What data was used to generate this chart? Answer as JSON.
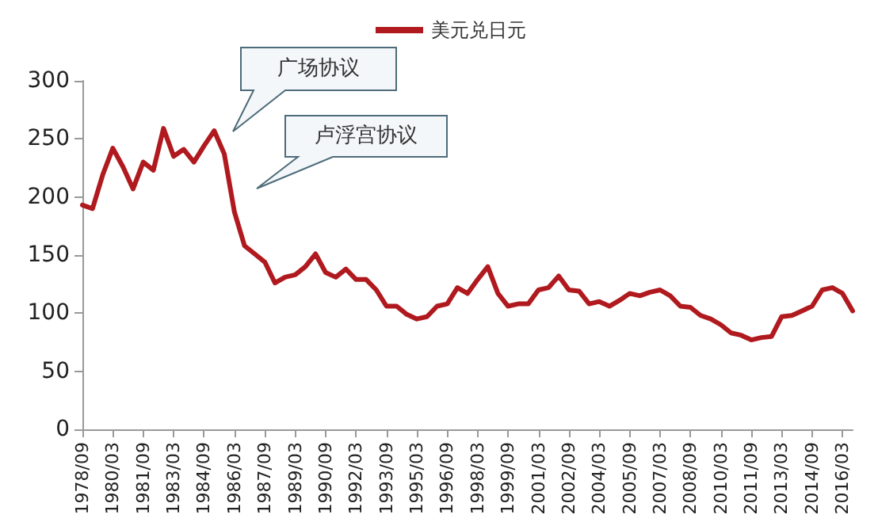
{
  "chart_data": {
    "type": "line",
    "categories": [
      "1978/09",
      null,
      null,
      "1980/03",
      null,
      null,
      "1981/09",
      null,
      null,
      "1983/03",
      null,
      null,
      "1984/09",
      null,
      null,
      "1986/03",
      null,
      null,
      "1987/09",
      null,
      null,
      "1989/03",
      null,
      null,
      "1990/09",
      null,
      null,
      "1992/03",
      null,
      null,
      "1993/09",
      null,
      null,
      "1995/03",
      null,
      null,
      "1996/09",
      null,
      null,
      "1998/03",
      null,
      null,
      "1999/09",
      null,
      null,
      "2001/03",
      null,
      null,
      "2002/09",
      null,
      null,
      "2004/03",
      null,
      null,
      "2005/09",
      null,
      null,
      "2007/03",
      null,
      null,
      "2008/09",
      null,
      null,
      "2010/03",
      null,
      null,
      "2011/09",
      null,
      null,
      "2013/03",
      null,
      null,
      "2014/09",
      null,
      null,
      "2016/03",
      null
    ],
    "series": [
      {
        "name": "美元兑日元",
        "color": "#b01a1f",
        "values": [
          193,
          190,
          219,
          242,
          226,
          207,
          230,
          223,
          259,
          235,
          241,
          230,
          244,
          257,
          237,
          187,
          158,
          151,
          144,
          126,
          131,
          133,
          140,
          151,
          135,
          131,
          138,
          129,
          129,
          120,
          106,
          106,
          99,
          95,
          97,
          106,
          108,
          122,
          117,
          129,
          140,
          117,
          106,
          108,
          108,
          120,
          122,
          132,
          120,
          119,
          108,
          110,
          106,
          111,
          117,
          115,
          118,
          120,
          115,
          106,
          105,
          98,
          95,
          90,
          83,
          81,
          77,
          79,
          80,
          97,
          98,
          102,
          106,
          120,
          122,
          117,
          102
        ]
      }
    ],
    "ylim": [
      0,
      300
    ],
    "yticks": [
      0,
      50,
      100,
      150,
      200,
      250,
      300
    ],
    "grid": false,
    "legend": "top",
    "marker": "none",
    "line_style": "solid",
    "annotations": [
      "广场协议",
      "卢浮宫协议"
    ]
  }
}
